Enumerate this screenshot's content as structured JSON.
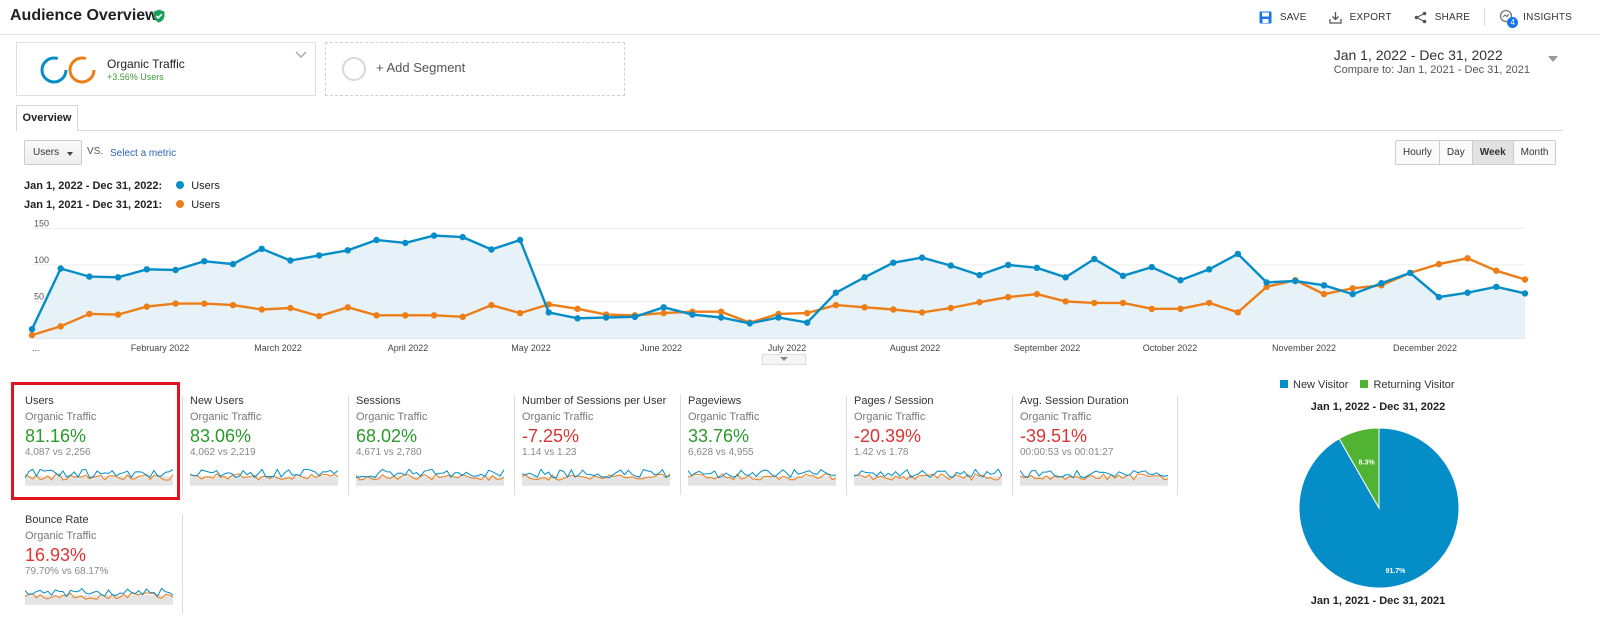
{
  "header": {
    "title": "Audience Overview",
    "save_label": "SAVE",
    "export_label": "EXPORT",
    "share_label": "SHARE",
    "insights_label": "INSIGHTS",
    "insights_badge": "4"
  },
  "segment": {
    "name": "Organic Traffic",
    "subtitle": "+3.56% Users",
    "add_label": "+ Add Segment"
  },
  "date_range": {
    "main": "Jan 1, 2022 - Dec 31, 2022",
    "compare": "Compare to: Jan 1, 2021 - Dec 31, 2021"
  },
  "tabs": {
    "overview": "Overview"
  },
  "chart_controls": {
    "metric": "Users",
    "vs": "VS.",
    "select_metric": "Select a metric",
    "granularity": [
      "Hourly",
      "Day",
      "Week",
      "Month"
    ],
    "active_granularity": "Week"
  },
  "legend": [
    {
      "range": "Jan 1, 2022 - Dec 31, 2022:",
      "metric": "Users",
      "color": "#058dc7"
    },
    {
      "range": "Jan 1, 2021 - Dec 31, 2021:",
      "metric": "Users",
      "color": "#ed7e17"
    }
  ],
  "chart_data": {
    "type": "line",
    "yticks": [
      "150",
      "100",
      "50"
    ],
    "ylim": [
      0,
      160
    ],
    "x_tick_labels": [
      "...",
      "February 2022",
      "March 2022",
      "April 2022",
      "May 2022",
      "June 2022",
      "July 2022",
      "August 2022",
      "September 2022",
      "October 2022",
      "November 2022",
      "December 2022"
    ],
    "series": [
      {
        "name": "Users",
        "period": "Jan 1, 2022 - Dec 31, 2022",
        "color": "#058dc7",
        "values": [
          12,
          95,
          84,
          83,
          94,
          93,
          105,
          101,
          122,
          106,
          113,
          120,
          134,
          130,
          140,
          138,
          121,
          134,
          35,
          27,
          28,
          29,
          42,
          32,
          28,
          20,
          28,
          21,
          62,
          83,
          103,
          110,
          99,
          86,
          100,
          96,
          83,
          108,
          85,
          97,
          79,
          94,
          115,
          76,
          78,
          72,
          60,
          75,
          89,
          56,
          62,
          70,
          61
        ]
      },
      {
        "name": "Users",
        "period": "Jan 1, 2021 - Dec 31, 2021",
        "color": "#ed7e17",
        "values": [
          4,
          16,
          33,
          32,
          43,
          47,
          47,
          45,
          39,
          41,
          30,
          42,
          31,
          31,
          31,
          29,
          45,
          34,
          46,
          40,
          32,
          31,
          34,
          36,
          36,
          21,
          33,
          34,
          45,
          42,
          39,
          35,
          41,
          49,
          56,
          60,
          50,
          48,
          48,
          40,
          40,
          48,
          35,
          70,
          79,
          60,
          68,
          72,
          89,
          101,
          109,
          92,
          80
        ]
      }
    ]
  },
  "metrics": [
    {
      "name": "Users",
      "segment": "Organic Traffic",
      "value": "81.16%",
      "trend": "pos",
      "compare": "4,087 vs 2,256"
    },
    {
      "name": "New Users",
      "segment": "Organic Traffic",
      "value": "83.06%",
      "trend": "pos",
      "compare": "4,062 vs 2,219"
    },
    {
      "name": "Sessions",
      "segment": "Organic Traffic",
      "value": "68.02%",
      "trend": "pos",
      "compare": "4,671 vs 2,780"
    },
    {
      "name": "Number of Sessions per User",
      "segment": "Organic Traffic",
      "value": "-7.25%",
      "trend": "neg",
      "compare": "1.14 vs 1.23"
    },
    {
      "name": "Pageviews",
      "segment": "Organic Traffic",
      "value": "33.76%",
      "trend": "pos",
      "compare": "6,628 vs 4,955"
    },
    {
      "name": "Pages / Session",
      "segment": "Organic Traffic",
      "value": "-20.39%",
      "trend": "neg",
      "compare": "1.42 vs 1.78"
    },
    {
      "name": "Avg. Session Duration",
      "segment": "Organic Traffic",
      "value": "-39.51%",
      "trend": "neg",
      "compare": "00:00:53 vs 00:01:27"
    },
    {
      "name": "Bounce Rate",
      "segment": "Organic Traffic",
      "value": "16.93%",
      "trend": "neg",
      "compare": "79.70% vs 68.17%"
    }
  ],
  "pie": {
    "legend": [
      {
        "label": "New Visitor",
        "color": "#058dc7"
      },
      {
        "label": "Returning Visitor",
        "color": "#50b432"
      }
    ],
    "title_top": "Jan 1, 2022 - Dec 31, 2022",
    "title_bottom": "Jan 1, 2021 - Dec 31, 2021",
    "slices": [
      {
        "label": "91.7%",
        "value": 91.7,
        "color": "#058dc7"
      },
      {
        "label": "8.3%",
        "value": 8.3,
        "color": "#50b432"
      }
    ]
  }
}
